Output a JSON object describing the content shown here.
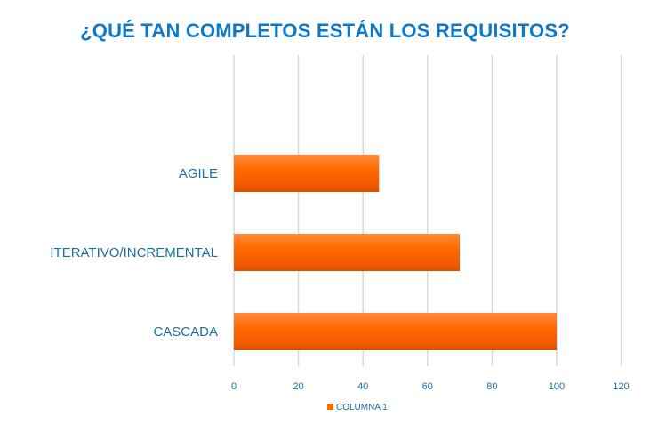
{
  "chart_data": {
    "type": "bar",
    "orientation": "horizontal",
    "title": "¿QUÉ TAN COMPLETOS ESTÁN LOS REQUISITOS?",
    "categories": [
      "AGILE",
      "ITERATIVO/INCREMENTAL",
      "CASCADA"
    ],
    "series": [
      {
        "name": "COLUMNA 1",
        "values": [
          45,
          70,
          100
        ],
        "color": "#ff6a00"
      }
    ],
    "xlim": [
      0,
      120
    ],
    "xticks": [
      "0",
      "20",
      "40",
      "60",
      "80",
      "100",
      "120"
    ],
    "xlabel": "",
    "ylabel": "",
    "grid": true,
    "legend": "bottom-center"
  }
}
